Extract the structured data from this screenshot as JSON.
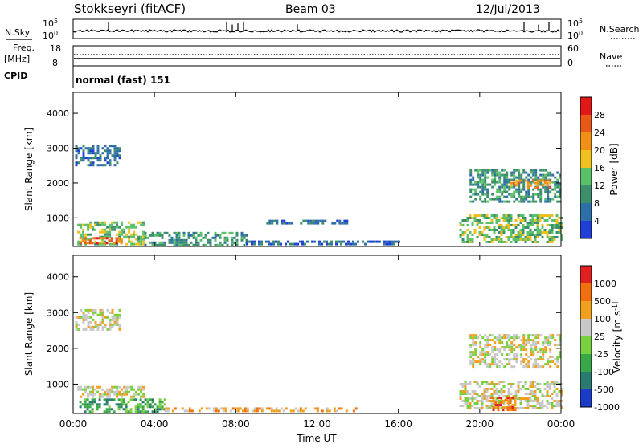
{
  "header": {
    "station": "Stokkseyri (fitACF)",
    "beam": "Beam 03",
    "date": "12/Jul/2013"
  },
  "noise_panel": {
    "left_label": "N.Sky",
    "left_ticks": [
      "10^5",
      "10^0"
    ],
    "right_label": "N.Search",
    "right_ticks": [
      "10^5",
      "10^0"
    ]
  },
  "freq_panel": {
    "left_label_1": "Freq.",
    "left_label_2": "[MHz]",
    "left_ticks": [
      "18",
      "8"
    ],
    "right_label": "Nave",
    "right_ticks": [
      "60",
      "0"
    ]
  },
  "cpid": {
    "label": "CPID",
    "value": "normal (fast) 151"
  },
  "chart_data": [
    {
      "type": "heatmap",
      "title": "",
      "xlabel": "Time UT",
      "ylabel": "Slant Range [km]",
      "x_ticks": [
        "00:00",
        "04:00",
        "08:00",
        "12:00",
        "16:00",
        "20:00",
        "00:00"
      ],
      "y_ticks": [
        "1000",
        "2000",
        "3000",
        "4000"
      ],
      "colorbar": {
        "label": "Power [dB]",
        "ticks": [
          "4",
          "8",
          "12",
          "16",
          "20",
          "24",
          "28"
        ],
        "colors": [
          "#1f3fd6",
          "#2f6fa8",
          "#3c8f6a",
          "#5bc06a",
          "#f0c020",
          "#f09018",
          "#e85818",
          "#e01818"
        ]
      },
      "regions": [
        {
          "t0": 0.1,
          "t1": 2.3,
          "r0": 2500,
          "r1": 3100,
          "level": 1
        },
        {
          "t0": 0.2,
          "t1": 3.5,
          "r0": 250,
          "r1": 900,
          "level": 3
        },
        {
          "t0": 0.3,
          "t1": 2.5,
          "r0": 250,
          "r1": 450,
          "level": 6
        },
        {
          "t0": 3.5,
          "t1": 8.5,
          "r0": 250,
          "r1": 600,
          "level": 2
        },
        {
          "t0": 8.5,
          "t1": 16.0,
          "r0": 250,
          "r1": 350,
          "level": 1
        },
        {
          "t0": 9.5,
          "t1": 13.5,
          "r0": 850,
          "r1": 950,
          "level": 1
        },
        {
          "t0": 19.0,
          "t1": 24.0,
          "r0": 300,
          "r1": 1100,
          "level": 3
        },
        {
          "t0": 19.5,
          "t1": 24.0,
          "r0": 1500,
          "r1": 2400,
          "level": 2
        },
        {
          "t0": 21.5,
          "t1": 23.5,
          "r0": 1850,
          "r1": 2100,
          "level": 5
        }
      ]
    },
    {
      "type": "heatmap",
      "title": "",
      "xlabel": "Time UT",
      "ylabel": "Slant Range [km]",
      "x_ticks": [
        "00:00",
        "04:00",
        "08:00",
        "12:00",
        "16:00",
        "20:00",
        "00:00"
      ],
      "y_ticks": [
        "1000",
        "2000",
        "3000",
        "4000"
      ],
      "colorbar": {
        "label": "Velocity [m s^-1]",
        "ticks": [
          "1000",
          "500",
          "100",
          "25",
          "-25",
          "-100",
          "-500",
          "-1000"
        ],
        "colors": [
          "#1c3cc8",
          "#2a7a70",
          "#3aa848",
          "#78d040",
          "#c8c8c8",
          "#f0a020",
          "#f07010",
          "#e02020"
        ]
      },
      "regions": [
        {
          "t0": 0.1,
          "t1": 2.3,
          "r0": 2500,
          "r1": 3100,
          "level": 4
        },
        {
          "t0": 0.2,
          "t1": 3.5,
          "r0": 650,
          "r1": 950,
          "level": 4
        },
        {
          "t0": 0.3,
          "t1": 4.5,
          "r0": 250,
          "r1": 600,
          "level": 2
        },
        {
          "t0": 4.5,
          "t1": 14.0,
          "r0": 250,
          "r1": 350,
          "level": 5
        },
        {
          "t0": 19.0,
          "t1": 24.0,
          "r0": 300,
          "r1": 1100,
          "level": 4
        },
        {
          "t0": 20.5,
          "t1": 21.7,
          "r0": 300,
          "r1": 650,
          "level": 6
        },
        {
          "t0": 19.5,
          "t1": 24.0,
          "r0": 1500,
          "r1": 2400,
          "level": 4
        }
      ]
    }
  ]
}
